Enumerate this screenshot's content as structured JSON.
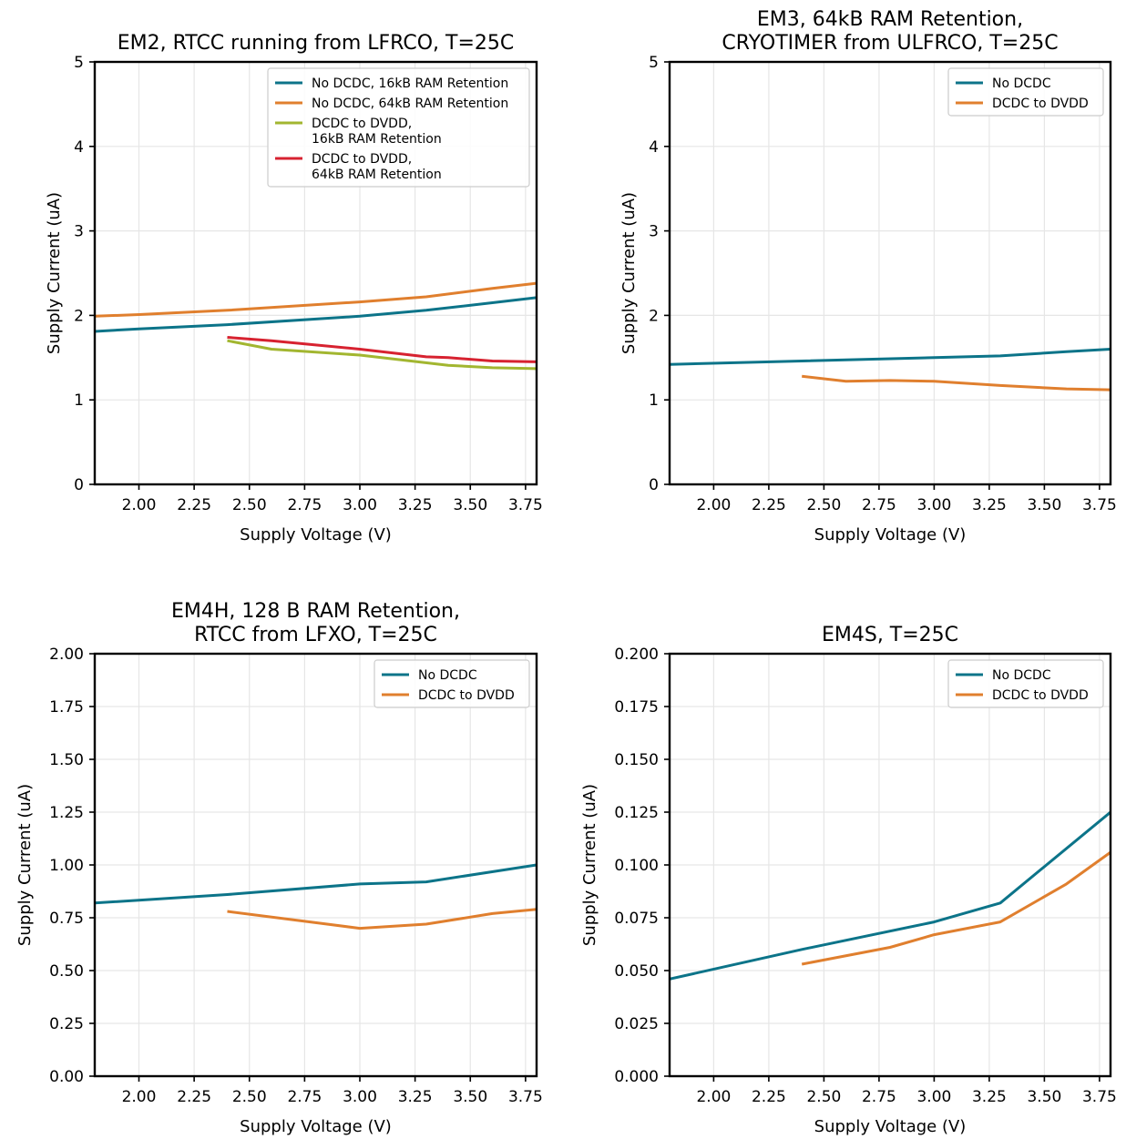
{
  "chart_data": [
    {
      "type": "line",
      "title": "EM2, RTCC running from LFRCO, T=25C",
      "xlabel": "Supply Voltage (V)",
      "ylabel": "Supply Current (uA)",
      "xlim": [
        1.8,
        3.8
      ],
      "ylim": [
        0,
        5
      ],
      "xticks": [
        "2.00",
        "2.25",
        "2.50",
        "2.75",
        "3.00",
        "3.25",
        "3.50",
        "3.75"
      ],
      "yticks": [
        "0",
        "1",
        "2",
        "3",
        "4",
        "5"
      ],
      "grid": true,
      "legend_position": "top-right",
      "series": [
        {
          "name": "No DCDC, 16kB RAM Retention",
          "color": "#0c7489",
          "x": [
            1.8,
            2.0,
            2.4,
            3.0,
            3.3,
            3.6,
            3.8
          ],
          "y": [
            1.81,
            1.84,
            1.89,
            1.99,
            2.06,
            2.15,
            2.21
          ]
        },
        {
          "name": "No DCDC, 64kB RAM Retention",
          "color": "#e07f2e",
          "x": [
            1.8,
            2.0,
            2.4,
            3.0,
            3.3,
            3.6,
            3.8
          ],
          "y": [
            1.99,
            2.01,
            2.06,
            2.16,
            2.22,
            2.32,
            2.38
          ]
        },
        {
          "name": "DCDC to DVDD,\n16kB RAM Retention",
          "color": "#a2b630",
          "x": [
            2.4,
            2.6,
            3.0,
            3.4,
            3.6,
            3.8
          ],
          "y": [
            1.7,
            1.6,
            1.53,
            1.41,
            1.38,
            1.37
          ]
        },
        {
          "name": "DCDC to DVDD,\n64kB RAM Retention",
          "color": "#d72230",
          "x": [
            2.4,
            2.6,
            3.0,
            3.3,
            3.4,
            3.6,
            3.8
          ],
          "y": [
            1.74,
            1.7,
            1.6,
            1.51,
            1.5,
            1.46,
            1.45
          ]
        }
      ]
    },
    {
      "type": "line",
      "title": "EM3, 64kB RAM Retention,\nCRYOTIMER from ULFRCO, T=25C",
      "xlabel": "Supply Voltage (V)",
      "ylabel": "Supply Current (uA)",
      "xlim": [
        1.8,
        3.8
      ],
      "ylim": [
        0,
        5
      ],
      "xticks": [
        "2.00",
        "2.25",
        "2.50",
        "2.75",
        "3.00",
        "3.25",
        "3.50",
        "3.75"
      ],
      "yticks": [
        "0",
        "1",
        "2",
        "3",
        "4",
        "5"
      ],
      "grid": true,
      "legend_position": "top-right",
      "series": [
        {
          "name": "No DCDC",
          "color": "#0c7489",
          "x": [
            1.8,
            2.4,
            3.0,
            3.3,
            3.6,
            3.8
          ],
          "y": [
            1.42,
            1.46,
            1.5,
            1.52,
            1.57,
            1.6
          ]
        },
        {
          "name": "DCDC to DVDD",
          "color": "#e07f2e",
          "x": [
            2.4,
            2.6,
            2.8,
            3.0,
            3.3,
            3.6,
            3.8
          ],
          "y": [
            1.28,
            1.22,
            1.23,
            1.22,
            1.17,
            1.13,
            1.12
          ]
        }
      ]
    },
    {
      "type": "line",
      "title": "EM4H, 128 B RAM Retention,\nRTCC from LFXO, T=25C",
      "xlabel": "Supply Voltage (V)",
      "ylabel": "Supply Current (uA)",
      "xlim": [
        1.8,
        3.8
      ],
      "ylim": [
        0,
        2
      ],
      "xticks": [
        "2.00",
        "2.25",
        "2.50",
        "2.75",
        "3.00",
        "3.25",
        "3.50",
        "3.75"
      ],
      "yticks": [
        "0.00",
        "0.25",
        "0.50",
        "0.75",
        "1.00",
        "1.25",
        "1.50",
        "1.75",
        "2.00"
      ],
      "grid": true,
      "legend_position": "top-right",
      "series": [
        {
          "name": "No DCDC",
          "color": "#0c7489",
          "x": [
            1.8,
            2.4,
            3.0,
            3.3,
            3.8
          ],
          "y": [
            0.82,
            0.86,
            0.91,
            0.92,
            1.0
          ]
        },
        {
          "name": "DCDC to DVDD",
          "color": "#e07f2e",
          "x": [
            2.4,
            3.0,
            3.3,
            3.6,
            3.8
          ],
          "y": [
            0.78,
            0.7,
            0.72,
            0.77,
            0.79
          ]
        }
      ]
    },
    {
      "type": "line",
      "title": "EM4S, T=25C",
      "xlabel": "Supply Voltage (V)",
      "ylabel": "Supply Current (uA)",
      "xlim": [
        1.8,
        3.8
      ],
      "ylim": [
        0,
        0.2
      ],
      "xticks": [
        "2.00",
        "2.25",
        "2.50",
        "2.75",
        "3.00",
        "3.25",
        "3.50",
        "3.75"
      ],
      "yticks": [
        "0.000",
        "0.025",
        "0.050",
        "0.075",
        "0.100",
        "0.125",
        "0.150",
        "0.175",
        "0.200"
      ],
      "grid": true,
      "legend_position": "top-right",
      "series": [
        {
          "name": "No DCDC",
          "color": "#0c7489",
          "x": [
            1.8,
            2.4,
            3.0,
            3.3,
            3.8
          ],
          "y": [
            0.046,
            0.06,
            0.073,
            0.082,
            0.125
          ]
        },
        {
          "name": "DCDC to DVDD",
          "color": "#e07f2e",
          "x": [
            2.4,
            2.8,
            3.0,
            3.3,
            3.6,
            3.8
          ],
          "y": [
            0.053,
            0.061,
            0.067,
            0.073,
            0.091,
            0.106
          ]
        }
      ]
    }
  ]
}
